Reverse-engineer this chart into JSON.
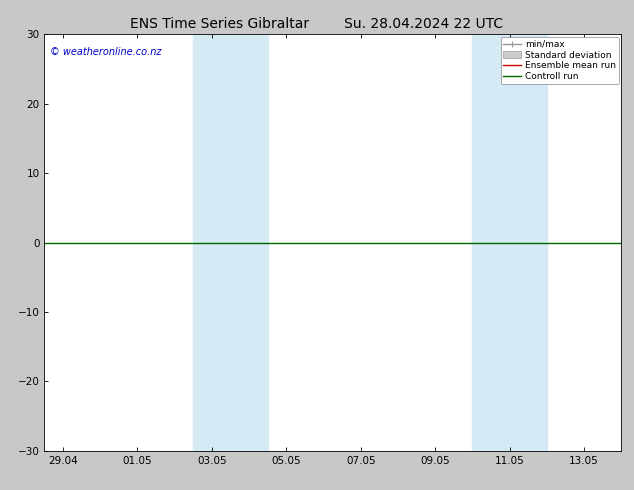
{
  "title_left": "ENS Time Series Gibraltar",
  "title_right": "Su. 28.04.2024 22 UTC",
  "watermark": "© weatheronline.co.nz",
  "ylim": [
    -30,
    30
  ],
  "yticks": [
    -30,
    -20,
    -10,
    0,
    10,
    20,
    30
  ],
  "xlim": [
    -0.5,
    15.0
  ],
  "xtick_labels": [
    "29.04",
    "01.05",
    "03.05",
    "05.05",
    "07.05",
    "09.05",
    "11.05",
    "13.05"
  ],
  "xtick_positions": [
    0,
    2,
    4,
    6,
    8,
    10,
    12,
    14
  ],
  "shaded_bands": [
    {
      "x_start": 3.5,
      "x_end": 5.5
    },
    {
      "x_start": 11.0,
      "x_end": 13.0
    }
  ],
  "band_color": "#d6eaf5",
  "hline_y": 0,
  "hline_color": "#006600",
  "legend_entries": [
    {
      "label": "min/max",
      "color": "#999999",
      "lw": 1.0
    },
    {
      "label": "Standard deviation",
      "color": "#cccccc",
      "lw": 5
    },
    {
      "label": "Ensemble mean run",
      "color": "#cc0000",
      "lw": 1.0
    },
    {
      "label": "Controll run",
      "color": "#006600",
      "lw": 1.0
    }
  ],
  "fig_facecolor": "#c8c8c8",
  "plot_facecolor": "#ffffff",
  "title_fontsize": 10,
  "label_fontsize": 7.5,
  "watermark_color": "#0000cc",
  "watermark_fontsize": 7
}
